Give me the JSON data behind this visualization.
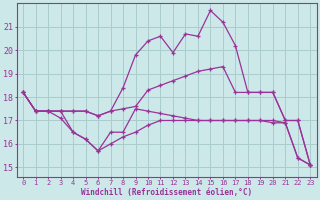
{
  "xlabel": "Windchill (Refroidissement éolien,°C)",
  "background_color": "#cce8e8",
  "grid_color": "#aacccc",
  "line_color": "#993399",
  "x_ticks": [
    0,
    1,
    2,
    3,
    4,
    5,
    6,
    7,
    8,
    9,
    10,
    11,
    12,
    13,
    14,
    15,
    16,
    17,
    18,
    19,
    20,
    21,
    22,
    23
  ],
  "y_ticks": [
    15,
    16,
    17,
    18,
    19,
    20,
    21
  ],
  "ylim": [
    14.6,
    22.0
  ],
  "xlim": [
    -0.5,
    23.5
  ],
  "curves": [
    [
      18.2,
      17.4,
      17.4,
      17.4,
      16.5,
      16.2,
      15.7,
      16.0,
      16.3,
      16.5,
      16.8,
      17.0,
      17.0,
      17.0,
      17.0,
      17.0,
      17.0,
      17.0,
      17.0,
      17.0,
      16.9,
      16.9,
      15.4,
      15.1
    ],
    [
      18.2,
      17.4,
      17.4,
      17.4,
      17.4,
      17.4,
      17.2,
      17.4,
      17.5,
      17.6,
      18.3,
      18.5,
      18.7,
      18.9,
      19.1,
      19.2,
      19.3,
      18.2,
      18.2,
      18.2,
      18.2,
      17.0,
      17.0,
      15.1
    ],
    [
      18.2,
      17.4,
      17.4,
      17.4,
      17.4,
      17.4,
      17.2,
      17.4,
      18.4,
      19.8,
      20.4,
      20.6,
      19.9,
      20.7,
      20.6,
      21.7,
      21.2,
      20.2,
      18.2,
      18.2,
      18.2,
      17.0,
      17.0,
      15.1
    ],
    [
      18.2,
      17.4,
      17.4,
      17.1,
      16.5,
      16.2,
      15.7,
      16.5,
      16.5,
      17.5,
      17.4,
      17.3,
      17.2,
      17.1,
      17.0,
      17.0,
      17.0,
      17.0,
      17.0,
      17.0,
      17.0,
      16.9,
      15.4,
      15.1
    ]
  ]
}
